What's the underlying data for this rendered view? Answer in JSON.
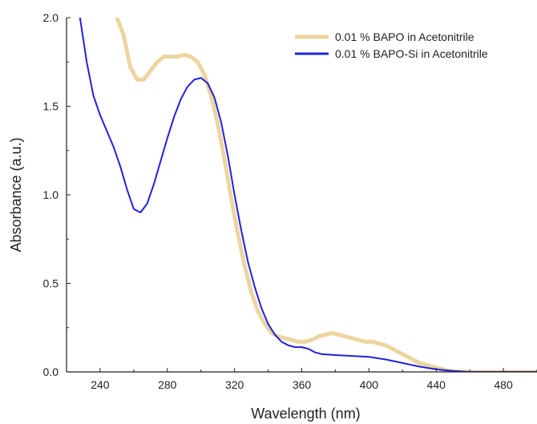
{
  "chart_data": {
    "type": "line",
    "title": "",
    "xlabel": "Wavelength (nm)",
    "ylabel": "Absorbance (a.u.)",
    "xlim": [
      220,
      500
    ],
    "ylim": [
      0,
      2.0
    ],
    "x_ticks": [
      240,
      280,
      320,
      360,
      400,
      440,
      480
    ],
    "x_tick_labels": [
      "240",
      "280",
      "320",
      "360",
      "400",
      "440",
      "480"
    ],
    "y_ticks": [
      0,
      0.5,
      1.0,
      1.5,
      2.0
    ],
    "y_tick_labels": [
      "0.0",
      "0.5",
      "1.0",
      "1.5",
      "2.0"
    ],
    "grid": false,
    "legend_position": "top-right",
    "series": [
      {
        "name": "0.01 % BAPO in Acetonitrile",
        "color": "#ecd5a0",
        "x": [
          250,
          254,
          258,
          262,
          266,
          270,
          274,
          278,
          282,
          286,
          290,
          294,
          298,
          302,
          306,
          310,
          314,
          318,
          322,
          326,
          330,
          334,
          338,
          342,
          346,
          350,
          354,
          358,
          362,
          366,
          370,
          374,
          378,
          382,
          386,
          390,
          394,
          398,
          402,
          406,
          410,
          414,
          418,
          422,
          426,
          430,
          434,
          438,
          442,
          446,
          450,
          455,
          460,
          470,
          480,
          490,
          500
        ],
        "y": [
          2.0,
          1.9,
          1.72,
          1.65,
          1.65,
          1.7,
          1.75,
          1.78,
          1.78,
          1.78,
          1.79,
          1.78,
          1.75,
          1.68,
          1.56,
          1.4,
          1.2,
          0.98,
          0.78,
          0.6,
          0.45,
          0.34,
          0.27,
          0.22,
          0.2,
          0.19,
          0.18,
          0.17,
          0.17,
          0.18,
          0.2,
          0.21,
          0.22,
          0.21,
          0.2,
          0.19,
          0.18,
          0.17,
          0.17,
          0.16,
          0.15,
          0.13,
          0.11,
          0.09,
          0.07,
          0.05,
          0.04,
          0.03,
          0.02,
          0.01,
          0.005,
          0.002,
          0.0,
          0.0,
          0.0,
          0.0,
          0.0
        ]
      },
      {
        "name": "0.01 % BAPO-Si in Acetonitrile",
        "color": "#2020e0",
        "x": [
          228,
          232,
          236,
          240,
          244,
          248,
          252,
          256,
          260,
          264,
          268,
          272,
          276,
          280,
          284,
          288,
          292,
          296,
          300,
          304,
          308,
          312,
          316,
          320,
          324,
          328,
          332,
          336,
          340,
          344,
          348,
          352,
          356,
          360,
          364,
          368,
          372,
          380,
          390,
          400,
          410,
          420,
          430,
          440,
          450,
          460,
          480,
          500
        ],
        "y": [
          2.0,
          1.75,
          1.56,
          1.45,
          1.36,
          1.27,
          1.16,
          1.03,
          0.92,
          0.9,
          0.95,
          1.06,
          1.19,
          1.32,
          1.44,
          1.54,
          1.61,
          1.65,
          1.66,
          1.63,
          1.55,
          1.41,
          1.22,
          1.0,
          0.8,
          0.62,
          0.48,
          0.36,
          0.27,
          0.21,
          0.17,
          0.15,
          0.14,
          0.14,
          0.13,
          0.11,
          0.1,
          0.095,
          0.09,
          0.085,
          0.07,
          0.05,
          0.03,
          0.015,
          0.005,
          0.0,
          0.0,
          0.0
        ]
      }
    ]
  }
}
